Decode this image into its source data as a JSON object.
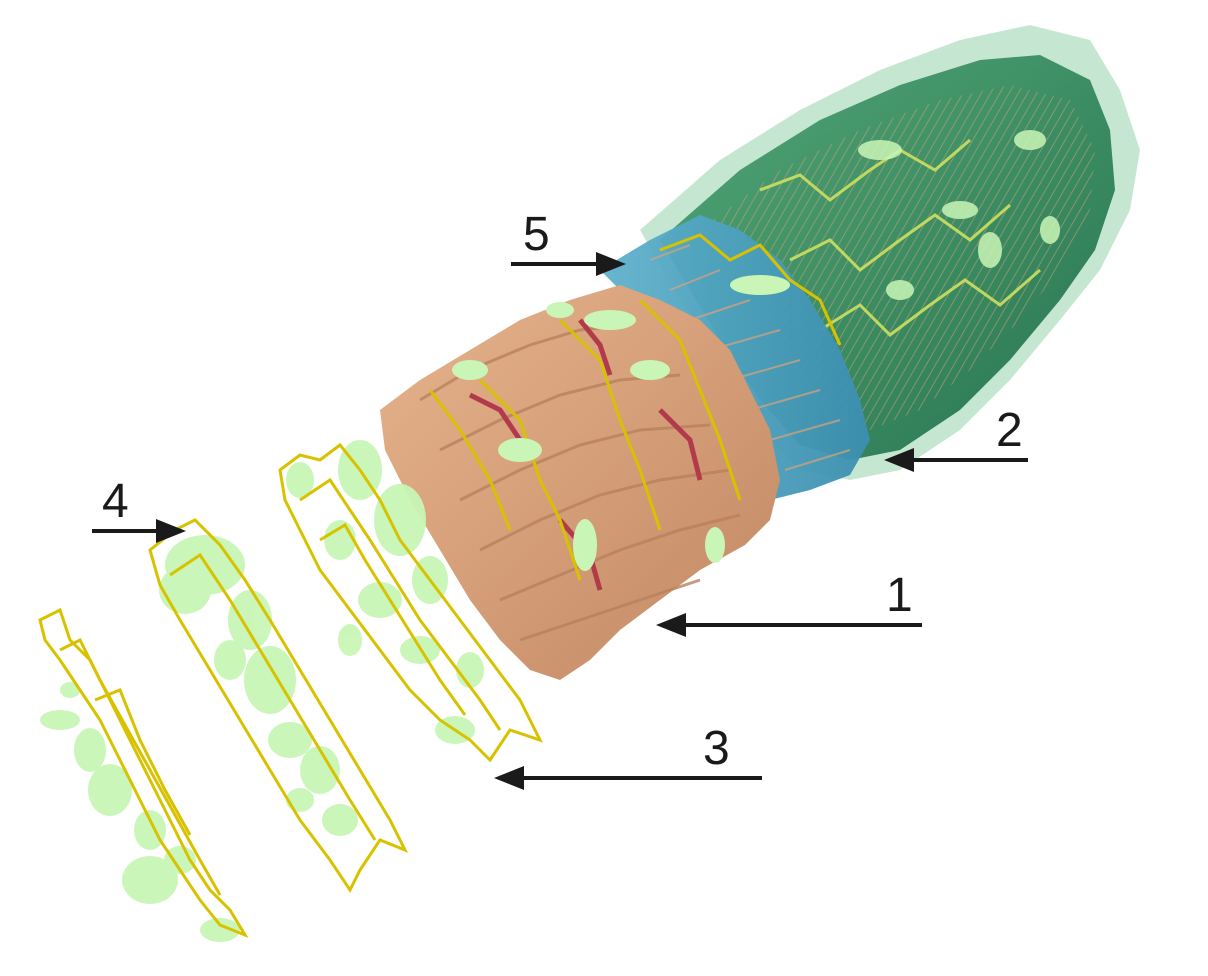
{
  "callouts": [
    {
      "id": "1",
      "label": "1"
    },
    {
      "id": "2",
      "label": "2"
    },
    {
      "id": "3",
      "label": "3"
    },
    {
      "id": "4",
      "label": "4"
    },
    {
      "id": "5",
      "label": "5"
    }
  ],
  "colors": {
    "tan_block": "#d9a37a",
    "tan_dark": "#b9825c",
    "red_joint": "#b23a4a",
    "yellow_wire": "#d8c200",
    "pale_green_blob": "#c9f6b6",
    "green_shell": "#2f8a5c",
    "teal_layer": "#4aa3c0",
    "arrow": "#1a1a1a"
  }
}
